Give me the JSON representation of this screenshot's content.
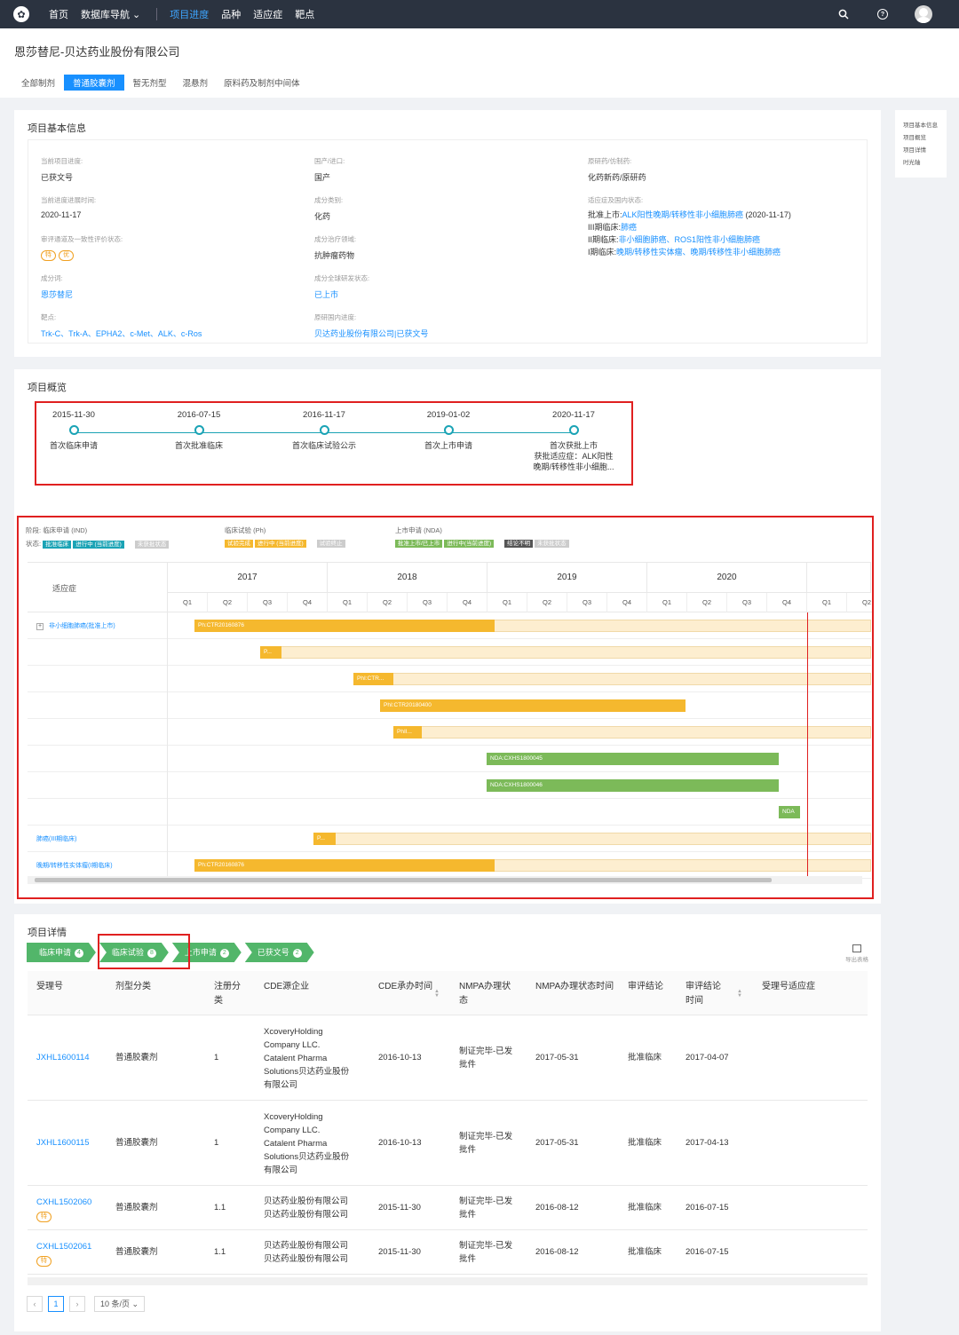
{
  "nav": {
    "logo": "✿",
    "items": [
      "首页",
      "数据库导航 ⌄",
      "项目进度",
      "品种",
      "适应症",
      "靶点"
    ],
    "active_index": 2
  },
  "header": {
    "company": "恩莎替尼-贝达药业股份有限公司",
    "tabs": [
      "全部制剂",
      "普通胶囊剂",
      "暂无剂型",
      "混悬剂",
      "原料药及制剂中间体"
    ],
    "active_tab": 1
  },
  "sidenav": [
    "项目基本信息",
    "项目概览",
    "项目详情",
    "时光轴"
  ],
  "basic": {
    "title": "项目基本信息",
    "fields": {
      "progress_label": "当前项目进度:",
      "progress_value": "已获文号",
      "origin_label": "国产/进口:",
      "origin_value": "国产",
      "drugtype_label": "原研药/仿制药:",
      "drugtype_value": "化药新药/原研药",
      "date_label": "当前进度进展时间:",
      "date_value": "2020-11-17",
      "class_label": "成分类别:",
      "class_value": "化药",
      "indic_label": "适应症及国内状态:",
      "review_label": "审评通道及一致性评价状态:",
      "badge1": "特",
      "badge2": "优",
      "area_label": "成分治疗领域:",
      "area_value": "抗肿瘤药物",
      "ingredient_label": "成分词:",
      "ingredient_value": "恩莎替尼",
      "global_label": "成分全球研发状态:",
      "global_value": "已上市",
      "target_label": "靶点:",
      "target_value": "Trk-C、Trk-A、EPHA2、c-Met、ALK、c-Ros",
      "orig_label": "原研国内进度:",
      "orig_value": "贝达药业股份有限公司|已获文号"
    },
    "indications": [
      {
        "prefix": "批准上市:",
        "link": "ALK阳性晚期/转移性非小细胞肺癌",
        "suffix": " (2020-11-17)"
      },
      {
        "prefix": "III期临床:",
        "link": "肺癌",
        "suffix": ""
      },
      {
        "prefix": "II期临床:",
        "link": "非小细胞肺癌、ROS1阳性非小细胞肺癌",
        "suffix": ""
      },
      {
        "prefix": "I期临床:",
        "link": "晚期/转移性实体瘤、晚期/转移性非小细胞肺癌",
        "suffix": ""
      }
    ]
  },
  "overview": {
    "title": "项目概览",
    "timeline": [
      {
        "date": "2015-11-30",
        "label": "首次临床申请"
      },
      {
        "date": "2016-07-15",
        "label": "首次批准临床"
      },
      {
        "date": "2016-11-17",
        "label": "首次临床试验公示"
      },
      {
        "date": "2019-01-02",
        "label": "首次上市申请"
      },
      {
        "date": "2020-11-17",
        "label": "首次获批上市",
        "extra1": "获批适应症：ALK阳性",
        "extra2": "晚期/转移性非小细胞..."
      }
    ],
    "legend": {
      "stage_label": "阶段:",
      "status_label": "状态:",
      "stage1": "临床申请 (IND)",
      "stage2": "临床试验 (Ph)",
      "stage3": "上市申请 (NDA)",
      "s1": [
        "批准临床",
        "进行中 (当前进度)",
        "",
        "未获批状态"
      ],
      "s2": [
        "试验完成",
        "进行中 (当前进度)",
        "",
        "试验终止"
      ],
      "s3": [
        "批准上市/已上市",
        "进行中(当前进度)",
        "",
        "结论不明",
        "未获批状态"
      ]
    },
    "gantt": {
      "header_label": "适应症",
      "years": [
        "2017",
        "2018",
        "2019",
        "2020"
      ],
      "quarters": [
        "Q1",
        "Q2",
        "Q3",
        "Q4",
        "Q1",
        "Q2",
        "Q3",
        "Q4",
        "Q1",
        "Q2",
        "Q3",
        "Q4",
        "Q1",
        "Q2",
        "Q3",
        "Q4",
        "Q1",
        "Q2"
      ],
      "rows": [
        {
          "label": "非小细胞肺癌(批准上市)",
          "expand": "+"
        },
        {
          "label": ""
        },
        {
          "label": ""
        },
        {
          "label": ""
        },
        {
          "label": ""
        },
        {
          "label": ""
        },
        {
          "label": ""
        },
        {
          "label": ""
        },
        {
          "label": "肺癌(III期临床)"
        },
        {
          "label": "晚期/转移性实体瘤(I期临床)"
        }
      ],
      "bars": [
        "Ph:CTR20160876",
        "P...",
        "PhI:CTR...",
        "PhI:CTR20180400",
        "PhII...",
        "NDA:CXHS1800045",
        "NDA:CXHS1800046",
        "NDA",
        "P...",
        "Ph:CTR20160876"
      ]
    }
  },
  "detail": {
    "title": "项目详情",
    "steps": [
      {
        "label": "临床申请",
        "count": "4"
      },
      {
        "label": "临床试验",
        "count": "8"
      },
      {
        "label": "上市申请",
        "count": "2"
      },
      {
        "label": "已获文号",
        "count": "2"
      }
    ],
    "export": "导出表格",
    "columns": [
      "受理号",
      "剂型分类",
      "注册分类",
      "CDE源企业",
      "CDE承办时间",
      "NMPA办理状态",
      "NMPA办理状态时间",
      "审评结论",
      "审评结论时间",
      "受理号适应症"
    ],
    "rows": [
      {
        "id": "JXHL1600114",
        "form": "普通胶囊剂",
        "reg": "1",
        "company": [
          "XcoveryHolding",
          "Company LLC.",
          "Catalent Pharma",
          "Solutions贝达药业股份",
          "有限公司"
        ],
        "cde": "2016-10-13",
        "nmpa": [
          "制证完毕-已发",
          "批件"
        ],
        "nmpa_time": "2017-05-31",
        "result": "批准临床",
        "result_time": "2017-04-07",
        "badge": ""
      },
      {
        "id": "JXHL1600115",
        "form": "普通胶囊剂",
        "reg": "1",
        "company": [
          "XcoveryHolding",
          "Company LLC.",
          "Catalent Pharma",
          "Solutions贝达药业股份",
          "有限公司"
        ],
        "cde": "2016-10-13",
        "nmpa": [
          "制证完毕-已发",
          "批件"
        ],
        "nmpa_time": "2017-05-31",
        "result": "批准临床",
        "result_time": "2017-04-13",
        "badge": ""
      },
      {
        "id": "CXHL1502060",
        "form": "普通胶囊剂",
        "reg": "1.1",
        "company": [
          "贝达药业股份有限公司",
          "贝达药业股份有限公司"
        ],
        "cde": "2015-11-30",
        "nmpa": [
          "制证完毕-已发",
          "批件"
        ],
        "nmpa_time": "2016-08-12",
        "result": "批准临床",
        "result_time": "2016-07-15",
        "badge": "特"
      },
      {
        "id": "CXHL1502061",
        "form": "普通胶囊剂",
        "reg": "1.1",
        "company": [
          "贝达药业股份有限公司",
          "贝达药业股份有限公司"
        ],
        "cde": "2015-11-30",
        "nmpa": [
          "制证完毕-已发",
          "批件"
        ],
        "nmpa_time": "2016-08-12",
        "result": "批准临床",
        "result_time": "2016-07-15",
        "badge": "特"
      }
    ],
    "pager": {
      "prev": "‹",
      "current": "1",
      "next": "›",
      "size": "10 条/页 ⌄"
    }
  },
  "colors": {
    "accent": "#1890ff",
    "nav_bg": "#2b3340",
    "ind": "#1aa3b5",
    "ph": "#f5b82e",
    "nda": "#7cba59",
    "highlight": "#e02020"
  }
}
